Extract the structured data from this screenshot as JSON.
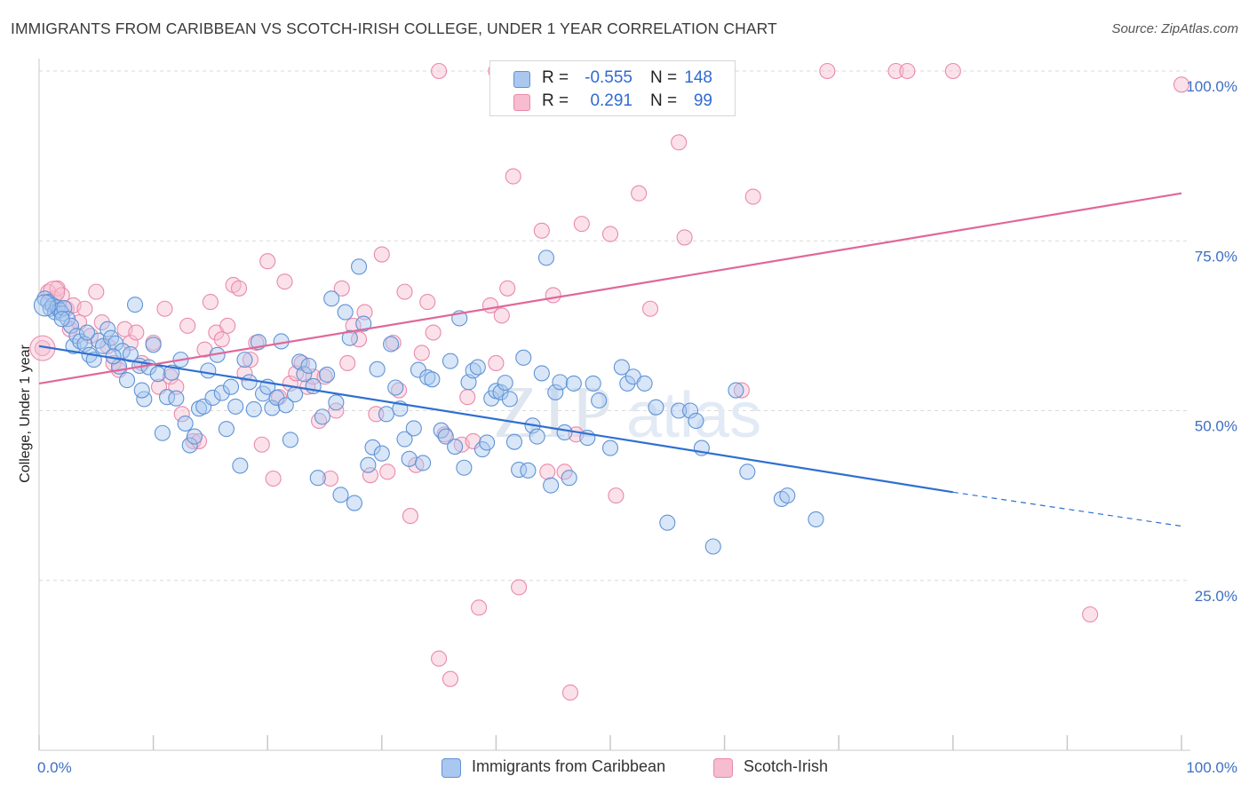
{
  "header": {
    "title": "IMMIGRANTS FROM CARIBBEAN VS SCOTCH-IRISH COLLEGE, UNDER 1 YEAR CORRELATION CHART",
    "source": "Source: ZipAtlas.com"
  },
  "watermark": {
    "text_zip": "ZIP",
    "text_atlas": "atlas"
  },
  "colors": {
    "blue_fill": "#a9c7ef",
    "blue_stroke": "#5f93d6",
    "blue_line": "#2f6fd0",
    "pink_fill": "#f6bcd0",
    "pink_stroke": "#e98aa9",
    "pink_line": "#e0679a",
    "grid": "#d9d9d9",
    "tick_label": "#3d6fc4"
  },
  "legend_top": {
    "rows": [
      {
        "r_label": "R =",
        "r_value": "-0.555",
        "n_label": "N =",
        "n_value": "148"
      },
      {
        "r_label": "R =",
        "r_value": "0.291",
        "n_label": "N =",
        "n_value": "99"
      }
    ]
  },
  "legend_bottom": [
    {
      "label": "Immigrants from Caribbean"
    },
    {
      "label": "Scotch-Irish"
    }
  ],
  "chart_data": {
    "type": "scatter",
    "title": "IMMIGRANTS FROM CARIBBEAN VS SCOTCH-IRISH COLLEGE, UNDER 1 YEAR CORRELATION CHART",
    "xlabel": "",
    "ylabel": "College, Under 1 year",
    "xlim": [
      0,
      100
    ],
    "ylim": [
      0,
      100
    ],
    "x_tick_labels": [
      "0.0%",
      "100.0%"
    ],
    "y_tick_labels": [
      "25.0%",
      "50.0%",
      "75.0%",
      "100.0%"
    ],
    "y_ticks": [
      25,
      50,
      75,
      100
    ],
    "grid": true,
    "legend_position": "bottom",
    "series": [
      {
        "name": "Immigrants from Caribbean",
        "color": "#a9c7ef",
        "trend": {
          "x": [
            0,
            80
          ],
          "y": [
            59.5,
            38.0
          ],
          "dashed_extension_to_x": 100,
          "dashed_y_end": 33.0
        },
        "points": [
          [
            0.5,
            66.5
          ],
          [
            0.8,
            66
          ],
          [
            1.0,
            65
          ],
          [
            1.2,
            65.5
          ],
          [
            1.4,
            64.5
          ],
          [
            1.6,
            65.2
          ],
          [
            1.8,
            64.8
          ],
          [
            2.0,
            64.3
          ],
          [
            2.2,
            65.1
          ],
          [
            2.5,
            63.5
          ],
          [
            2.8,
            62.5
          ],
          [
            3.0,
            59.5
          ],
          [
            3.3,
            61.0
          ],
          [
            3.6,
            60.2
          ],
          [
            4.0,
            59.8
          ],
          [
            4.4,
            58.2
          ],
          [
            4.8,
            57.5
          ],
          [
            5.2,
            60.3
          ],
          [
            5.6,
            59.5
          ],
          [
            6.0,
            62.0
          ],
          [
            6.3,
            60.7
          ],
          [
            6.7,
            59.9
          ],
          [
            7.0,
            56.5
          ],
          [
            7.3,
            58.8
          ],
          [
            7.7,
            54.5
          ],
          [
            8.0,
            58.3
          ],
          [
            8.4,
            65.6
          ],
          [
            8.8,
            56.6
          ],
          [
            9.2,
            51.7
          ],
          [
            9.6,
            56.4
          ],
          [
            10.0,
            59.7
          ],
          [
            10.4,
            55.4
          ],
          [
            10.8,
            46.7
          ],
          [
            11.2,
            52.0
          ],
          [
            11.6,
            55.6
          ],
          [
            12.0,
            51.8
          ],
          [
            12.4,
            57.5
          ],
          [
            12.8,
            48.1
          ],
          [
            13.2,
            44.9
          ],
          [
            13.6,
            46.2
          ],
          [
            14.0,
            50.3
          ],
          [
            14.4,
            50.6
          ],
          [
            14.8,
            55.9
          ],
          [
            15.2,
            51.9
          ],
          [
            15.6,
            58.2
          ],
          [
            16.0,
            52.6
          ],
          [
            16.4,
            47.3
          ],
          [
            16.8,
            53.5
          ],
          [
            17.2,
            50.6
          ],
          [
            17.6,
            41.9
          ],
          [
            18.0,
            57.5
          ],
          [
            18.4,
            54.2
          ],
          [
            18.8,
            50.2
          ],
          [
            19.2,
            60.1
          ],
          [
            19.6,
            52.5
          ],
          [
            20.0,
            53.5
          ],
          [
            20.4,
            50.4
          ],
          [
            20.8,
            51.9
          ],
          [
            21.2,
            60.2
          ],
          [
            21.6,
            50.8
          ],
          [
            22.0,
            45.7
          ],
          [
            22.4,
            52.4
          ],
          [
            22.8,
            57.2
          ],
          [
            23.2,
            55.4
          ],
          [
            23.6,
            56.6
          ],
          [
            24.0,
            53.6
          ],
          [
            24.4,
            40.1
          ],
          [
            24.8,
            49.1
          ],
          [
            25.2,
            55.3
          ],
          [
            25.6,
            66.5
          ],
          [
            26.0,
            51.2
          ],
          [
            26.4,
            37.6
          ],
          [
            26.8,
            64.5
          ],
          [
            27.2,
            60.7
          ],
          [
            27.6,
            36.4
          ],
          [
            28.0,
            71.2
          ],
          [
            28.4,
            62.8
          ],
          [
            28.8,
            42.0
          ],
          [
            29.2,
            44.6
          ],
          [
            29.6,
            56.1
          ],
          [
            30.0,
            43.7
          ],
          [
            30.4,
            49.5
          ],
          [
            30.8,
            59.8
          ],
          [
            31.2,
            53.4
          ],
          [
            31.6,
            50.3
          ],
          [
            32.0,
            45.8
          ],
          [
            32.4,
            42.9
          ],
          [
            32.8,
            47.4
          ],
          [
            33.2,
            56.0
          ],
          [
            33.6,
            42.3
          ],
          [
            34.0,
            54.9
          ],
          [
            34.4,
            54.6
          ],
          [
            35.2,
            47.1
          ],
          [
            35.6,
            46.2
          ],
          [
            36.0,
            57.3
          ],
          [
            36.4,
            44.7
          ],
          [
            36.8,
            63.6
          ],
          [
            37.2,
            41.6
          ],
          [
            37.6,
            54.2
          ],
          [
            38.0,
            55.9
          ],
          [
            38.4,
            56.4
          ],
          [
            38.8,
            44.3
          ],
          [
            39.2,
            45.3
          ],
          [
            39.6,
            51.8
          ],
          [
            40.0,
            52.9
          ],
          [
            40.4,
            52.7
          ],
          [
            40.8,
            54.1
          ],
          [
            41.2,
            51.7
          ],
          [
            41.6,
            45.4
          ],
          [
            42.0,
            41.3
          ],
          [
            42.4,
            57.8
          ],
          [
            42.8,
            41.2
          ],
          [
            43.2,
            47.8
          ],
          [
            43.6,
            46.2
          ],
          [
            44.0,
            55.5
          ],
          [
            44.4,
            72.5
          ],
          [
            44.8,
            39.0
          ],
          [
            45.2,
            52.7
          ],
          [
            45.6,
            54.2
          ],
          [
            46.0,
            46.8
          ],
          [
            46.4,
            40.1
          ],
          [
            46.8,
            54.0
          ],
          [
            48.0,
            46.0
          ],
          [
            48.5,
            54.0
          ],
          [
            49.0,
            51.5
          ],
          [
            50.0,
            44.5
          ],
          [
            51.0,
            56.4
          ],
          [
            51.5,
            54.0
          ],
          [
            52.0,
            55.0
          ],
          [
            53.0,
            54.0
          ],
          [
            54.0,
            50.5
          ],
          [
            55.0,
            33.5
          ],
          [
            56.0,
            50.0
          ],
          [
            57.0,
            50.0
          ],
          [
            57.5,
            48.5
          ],
          [
            58.0,
            44.5
          ],
          [
            59.0,
            30.0
          ],
          [
            61.0,
            53.0
          ],
          [
            62.0,
            41.0
          ],
          [
            65.0,
            37.0
          ],
          [
            65.5,
            37.5
          ],
          [
            68.0,
            34.0
          ],
          [
            2.0,
            63.5
          ],
          [
            4.2,
            61.5
          ],
          [
            6.5,
            58.0
          ],
          [
            9.0,
            53.0
          ]
        ]
      },
      {
        "name": "Scotch-Irish",
        "color": "#f6bcd0",
        "trend": {
          "x": [
            0,
            100
          ],
          "y": [
            54.0,
            82.0
          ]
        },
        "points": [
          [
            0.3,
            59.2
          ],
          [
            0.8,
            67.5
          ],
          [
            1.3,
            66.5
          ],
          [
            1.6,
            68.0
          ],
          [
            2.0,
            67.0
          ],
          [
            2.4,
            65.0
          ],
          [
            2.7,
            62.0
          ],
          [
            3.0,
            65.5
          ],
          [
            3.5,
            63.0
          ],
          [
            4.0,
            65.0
          ],
          [
            4.5,
            61.0
          ],
          [
            5.0,
            67.5
          ],
          [
            5.5,
            63.0
          ],
          [
            6.0,
            59.5
          ],
          [
            6.5,
            57.0
          ],
          [
            7.0,
            56.0
          ],
          [
            7.5,
            62.0
          ],
          [
            8.0,
            60.0
          ],
          [
            8.5,
            61.5
          ],
          [
            9.0,
            57.0
          ],
          [
            10.0,
            60.0
          ],
          [
            10.5,
            53.5
          ],
          [
            11.0,
            65.0
          ],
          [
            11.5,
            55.0
          ],
          [
            12.0,
            53.5
          ],
          [
            12.5,
            49.5
          ],
          [
            13.0,
            62.5
          ],
          [
            13.5,
            45.5
          ],
          [
            14.0,
            45.5
          ],
          [
            14.5,
            59.0
          ],
          [
            15.0,
            66.0
          ],
          [
            15.5,
            61.5
          ],
          [
            16.0,
            60.5
          ],
          [
            16.5,
            62.5
          ],
          [
            17.0,
            68.5
          ],
          [
            17.5,
            68.0
          ],
          [
            18.0,
            55.5
          ],
          [
            18.5,
            57.5
          ],
          [
            19.0,
            60.0
          ],
          [
            19.5,
            45.0
          ],
          [
            20.0,
            72.0
          ],
          [
            20.5,
            40.0
          ],
          [
            21.0,
            52.0
          ],
          [
            21.5,
            69.0
          ],
          [
            22.0,
            54.0
          ],
          [
            22.5,
            55.5
          ],
          [
            23.0,
            57.0
          ],
          [
            23.5,
            53.5
          ],
          [
            24.0,
            55.0
          ],
          [
            24.5,
            48.5
          ],
          [
            25.0,
            55.0
          ],
          [
            25.5,
            40.0
          ],
          [
            26.0,
            50.0
          ],
          [
            26.5,
            68.0
          ],
          [
            27.0,
            57.0
          ],
          [
            27.5,
            62.5
          ],
          [
            28.0,
            60.5
          ],
          [
            28.5,
            64.5
          ],
          [
            29.0,
            40.5
          ],
          [
            29.5,
            49.5
          ],
          [
            30.0,
            73.0
          ],
          [
            30.5,
            41.0
          ],
          [
            31.0,
            60.0
          ],
          [
            31.5,
            53.0
          ],
          [
            32.0,
            67.5
          ],
          [
            32.5,
            34.5
          ],
          [
            33.0,
            42.0
          ],
          [
            33.5,
            58.5
          ],
          [
            34.0,
            66.0
          ],
          [
            34.5,
            61.5
          ],
          [
            35.0,
            13.5
          ],
          [
            35.5,
            46.5
          ],
          [
            36.0,
            10.5
          ],
          [
            37.0,
            45.0
          ],
          [
            37.5,
            52.0
          ],
          [
            38.0,
            45.5
          ],
          [
            38.5,
            21.0
          ],
          [
            39.5,
            65.5
          ],
          [
            40.0,
            57.0
          ],
          [
            40.5,
            64.0
          ],
          [
            41.0,
            68.0
          ],
          [
            41.5,
            84.5
          ],
          [
            42.0,
            24.0
          ],
          [
            44.0,
            76.5
          ],
          [
            44.5,
            41.0
          ],
          [
            45.0,
            67.0
          ],
          [
            46.0,
            41.0
          ],
          [
            46.5,
            8.5
          ],
          [
            47.0,
            46.5
          ],
          [
            47.5,
            77.5
          ],
          [
            50.0,
            76.0
          ],
          [
            50.5,
            37.5
          ],
          [
            52.5,
            82.0
          ],
          [
            53.5,
            65.0
          ],
          [
            56.0,
            89.5
          ],
          [
            56.5,
            75.5
          ],
          [
            61.5,
            53.0
          ],
          [
            62.5,
            81.5
          ],
          [
            92.0,
            20.0
          ],
          [
            100.0,
            98.0
          ],
          [
            35.0,
            100.0
          ],
          [
            40.0,
            100.0
          ],
          [
            43.0,
            100.0
          ],
          [
            48.0,
            100.0
          ],
          [
            50.0,
            100.0
          ],
          [
            69.0,
            100.0
          ],
          [
            75.0,
            100.0
          ],
          [
            76.0,
            100.0
          ],
          [
            80.0,
            100.0
          ]
        ]
      }
    ]
  }
}
